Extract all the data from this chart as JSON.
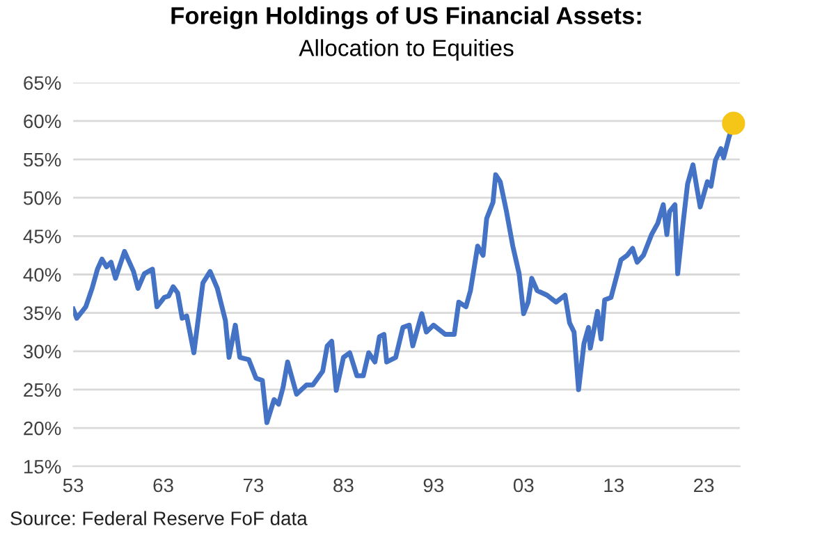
{
  "chart_data": {
    "type": "line",
    "title": "Foreign Holdings of US Financial Assets:",
    "subtitle": "Allocation to Equities",
    "annotations": [
      "Source: Federal Reserve FoF data"
    ],
    "xlim": [
      1953,
      2027
    ],
    "xticks": [
      {
        "value": 1953,
        "label": "53"
      },
      {
        "value": 1963,
        "label": "63"
      },
      {
        "value": 1973,
        "label": "73"
      },
      {
        "value": 1983,
        "label": "83"
      },
      {
        "value": 1993,
        "label": "93"
      },
      {
        "value": 2003,
        "label": "03"
      },
      {
        "value": 2013,
        "label": "13"
      },
      {
        "value": 2023,
        "label": "23"
      }
    ],
    "ylim": [
      15,
      65
    ],
    "yticks": [
      {
        "value": 15,
        "label": "15%"
      },
      {
        "value": 20,
        "label": "20%"
      },
      {
        "value": 25,
        "label": "25%"
      },
      {
        "value": 30,
        "label": "30%"
      },
      {
        "value": 35,
        "label": "35%"
      },
      {
        "value": 40,
        "label": "40%"
      },
      {
        "value": 45,
        "label": "45%"
      },
      {
        "value": 50,
        "label": "50%"
      },
      {
        "value": 55,
        "label": "55%"
      },
      {
        "value": 60,
        "label": "60%"
      },
      {
        "value": 65,
        "label": "65%"
      }
    ],
    "grid": "y",
    "legend": false,
    "series": [
      {
        "color": "#4472c4",
        "x": [
          1953.0,
          1953.4,
          1954.4,
          1955.1,
          1955.7,
          1956.2,
          1956.7,
          1957.2,
          1957.7,
          1958.7,
          1959.7,
          1960.2,
          1960.9,
          1961.8,
          1962.3,
          1963.1,
          1963.6,
          1964.1,
          1964.6,
          1965.1,
          1965.6,
          1966.4,
          1967.4,
          1968.2,
          1969.0,
          1969.9,
          1970.3,
          1971.0,
          1971.5,
          1972.5,
          1973.3,
          1974.0,
          1974.5,
          1975.3,
          1975.8,
          1976.3,
          1976.8,
          1977.8,
          1978.9,
          1979.6,
          1980.7,
          1981.2,
          1981.7,
          1982.2,
          1983.0,
          1983.7,
          1984.5,
          1985.2,
          1985.8,
          1986.5,
          1987.0,
          1987.5,
          1987.8,
          1988.8,
          1989.6,
          1990.3,
          1990.7,
          1991.7,
          1992.2,
          1993.0,
          1994.3,
          1995.3,
          1995.8,
          1996.6,
          1997.1,
          1997.9,
          1998.5,
          1998.9,
          1999.6,
          1999.9,
          2000.4,
          2001.1,
          2001.8,
          2002.5,
          2003.0,
          2003.5,
          2003.9,
          2004.5,
          2005.6,
          2006.6,
          2007.6,
          2008.1,
          2008.6,
          2009.1,
          2009.7,
          2010.2,
          2010.4,
          2011.2,
          2011.6,
          2012.0,
          2012.7,
          2013.8,
          2014.5,
          2015.1,
          2015.6,
          2016.3,
          2017.2,
          2017.9,
          2018.5,
          2018.9,
          2019.2,
          2019.8,
          2020.1,
          2020.7,
          2021.2,
          2021.8,
          2022.2,
          2022.6,
          2023.4,
          2023.8,
          2024.3,
          2024.9,
          2025.2,
          2025.8,
          2026.3
        ],
        "values": [
          35.5,
          34.3,
          35.8,
          38.2,
          40.7,
          42.0,
          41.0,
          41.6,
          39.5,
          43.0,
          40.4,
          38.2,
          40.1,
          40.7,
          35.8,
          37.0,
          37.2,
          38.4,
          37.6,
          34.3,
          34.6,
          29.8,
          38.9,
          40.4,
          38.2,
          34.0,
          29.2,
          33.4,
          29.2,
          28.9,
          26.5,
          26.2,
          20.7,
          23.7,
          23.1,
          25.3,
          28.6,
          24.4,
          25.6,
          25.6,
          27.4,
          30.7,
          31.3,
          24.9,
          29.2,
          29.8,
          26.8,
          26.8,
          29.8,
          28.6,
          31.9,
          32.2,
          28.6,
          29.2,
          33.1,
          33.4,
          30.7,
          34.9,
          32.5,
          33.4,
          32.2,
          32.2,
          36.4,
          35.8,
          37.9,
          43.7,
          42.5,
          47.3,
          49.4,
          53.0,
          52.1,
          48.2,
          43.7,
          40.1,
          34.9,
          36.4,
          39.5,
          37.9,
          37.3,
          36.4,
          37.3,
          33.7,
          32.5,
          25.0,
          31.0,
          33.1,
          30.4,
          35.2,
          31.6,
          36.7,
          37.0,
          41.9,
          42.5,
          43.4,
          41.6,
          42.5,
          45.2,
          46.7,
          49.1,
          45.2,
          48.2,
          49.1,
          40.1,
          46.7,
          51.8,
          54.3,
          51.5,
          48.8,
          52.1,
          51.5,
          54.9,
          56.4,
          55.2,
          57.9,
          59.7
        ]
      },
      {
        "type": "scatter",
        "color": "#f5c518",
        "x": [
          2026.3
        ],
        "values": [
          59.7
        ]
      }
    ]
  }
}
